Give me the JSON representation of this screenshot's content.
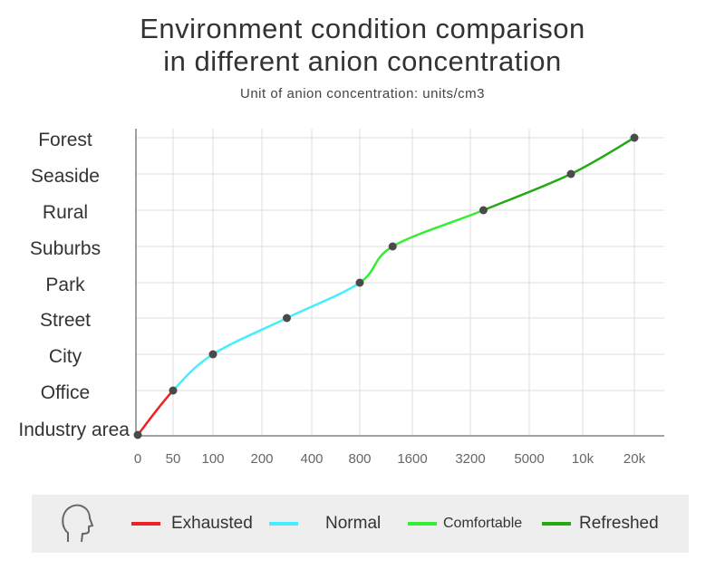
{
  "chart_data": {
    "type": "line",
    "title": "Environment condition comparison in different anion concentration",
    "title_lines": [
      "Environment condition comparison",
      "in different anion concentration"
    ],
    "subtitle": "Unit of anion concentration: units/cm3",
    "x_ticks": [
      "0",
      "50",
      "100",
      "200",
      "400",
      "800",
      "1600",
      "3200",
      "5000",
      "10k",
      "20k"
    ],
    "x_tick_values": [
      0,
      50,
      100,
      200,
      400,
      800,
      1600,
      3200,
      5000,
      10000,
      20000
    ],
    "y_categories": [
      "Industry area",
      "Office",
      "City",
      "Street",
      "Park",
      "Suburbs",
      "Rural",
      "Seaside",
      "Forest"
    ],
    "points": [
      {
        "y": "Industry area",
        "x": 0
      },
      {
        "y": "Office",
        "x": 50
      },
      {
        "y": "City",
        "x": 100
      },
      {
        "y": "Street",
        "x": 300
      },
      {
        "y": "Park",
        "x": 800
      },
      {
        "y": "Suburbs",
        "x": 1300
      },
      {
        "y": "Rural",
        "x": 3600
      },
      {
        "y": "Seaside",
        "x": 8900
      },
      {
        "y": "Forest",
        "x": 20000
      }
    ],
    "segments": [
      {
        "name": "Exhausted",
        "from": 0,
        "to": 1,
        "color": "#ee2222"
      },
      {
        "name": "Normal",
        "from": 1,
        "to": 4,
        "color": "#44eeff"
      },
      {
        "name": "Comfortable",
        "from": 4,
        "to": 6,
        "color": "#33ee33"
      },
      {
        "name": "Refreshed",
        "from": 6,
        "to": 8,
        "color": "#22aa11"
      }
    ],
    "grid": true,
    "marker_color": "#4a4a4a",
    "legend_placement": "bottom",
    "legend_icon": "head-profile-icon"
  }
}
